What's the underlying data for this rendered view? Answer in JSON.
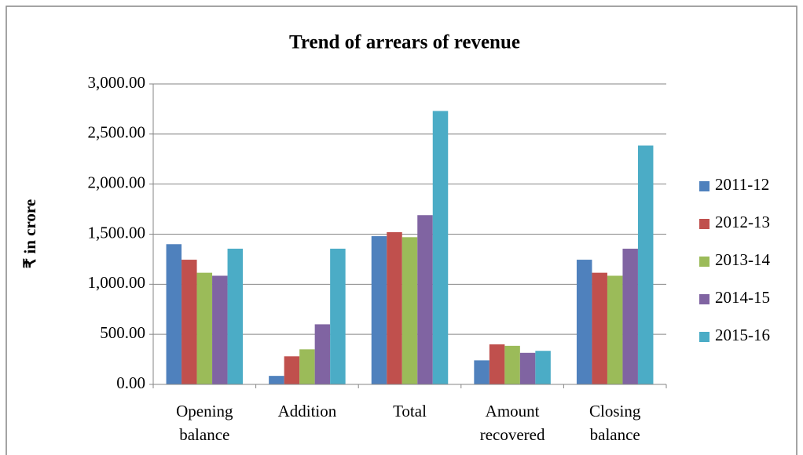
{
  "chart_data": {
    "type": "bar",
    "title": "Trend of arrears of revenue",
    "y_label": "₹ in crore",
    "categories": [
      "Opening balance",
      "Addition",
      "Total",
      "Amount recovered",
      "Closing balance"
    ],
    "series": [
      {
        "name": "2011-12",
        "color": "#4f81bd",
        "values": [
          1400,
          85,
          1480,
          240,
          1245
        ]
      },
      {
        "name": "2012-13",
        "color": "#c0504d",
        "values": [
          1245,
          280,
          1520,
          400,
          1115
        ]
      },
      {
        "name": "2013-14",
        "color": "#9bbb59",
        "values": [
          1115,
          350,
          1470,
          385,
          1085
        ]
      },
      {
        "name": "2014-15",
        "color": "#8064a2",
        "values": [
          1085,
          600,
          1690,
          315,
          1355
        ]
      },
      {
        "name": "2015-16",
        "color": "#4bacc6",
        "values": [
          1355,
          1355,
          2730,
          335,
          2385
        ]
      }
    ],
    "ylim": [
      0,
      3000
    ],
    "yticks": [
      {
        "value": 0,
        "label": "0.00"
      },
      {
        "value": 500,
        "label": "500.00"
      },
      {
        "value": 1000,
        "label": "1,000.00"
      },
      {
        "value": 1500,
        "label": "1,500.00"
      },
      {
        "value": 2000,
        "label": "2,000.00"
      },
      {
        "value": 2500,
        "label": "2,500.00"
      },
      {
        "value": 3000,
        "label": "3,000.00"
      }
    ],
    "grid": true,
    "legend": "right"
  }
}
